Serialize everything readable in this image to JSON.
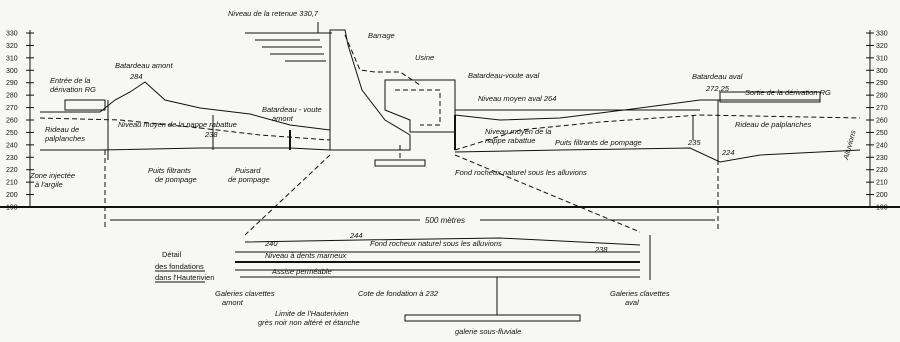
{
  "axes": {
    "elevations": [
      330,
      320,
      310,
      300,
      290,
      280,
      270,
      260,
      250,
      240,
      230,
      220,
      210,
      200,
      190
    ]
  },
  "profile": {
    "reservoir_level": "Niveau de la retenue 330,7",
    "dam": "Barrage",
    "plant": "Usine",
    "upstream_cofferdam": "Batardeau amont",
    "upstream_cofferdam_level": "284",
    "diversion_inlet": [
      "Entrée de la",
      "dérivation RG"
    ],
    "sheet_piling_left": [
      "Rideau de",
      "palplanches"
    ],
    "water_table_left": "Niveau moyen de la nappe rabattue",
    "left_rock_level": "238",
    "upstream_arch_cofferdam": [
      "Batardeau - voute",
      "amont"
    ],
    "grouted_zone": [
      "Zone injectée",
      "à l'argile"
    ],
    "wells_left": [
      "Puits filtrants",
      "de pompage"
    ],
    "sump": [
      "Puisard",
      "de pompage"
    ],
    "downstream_arch_cofferdam": "Batardeau-voute aval",
    "tailwater_level": "Niveau moyen aval 264",
    "water_table_right": [
      "Niveau moyen de la",
      "nappe rabattue"
    ],
    "wells_right": "Puits filtrants de pompage",
    "rock_bed": "Fond rocheux naturel sous les alluvions",
    "downstream_cofferdam": "Batardeau aval",
    "downstream_cofferdam_level": "272,25",
    "diversion_outlet": "Sortie de la dérivation RG",
    "sheet_piling_right": "Rideau de palplanches",
    "alluvium": "Alluvions",
    "right_level_a": "235",
    "right_level_b": "224",
    "distance": "500 mètres"
  },
  "detail": {
    "title": [
      "Détail",
      "des fondations",
      "dans l'Hauterivien"
    ],
    "level_left": "240",
    "level_mid": "244",
    "rock_bed": "Fond rocheux naturel sous les alluvions",
    "level_right": "238",
    "marl_layer": "Niveau à dents marneux",
    "permeable_layer": "Assise perméable",
    "foundation_level": "Cote de fondation à 232",
    "keys_upstream": [
      "Galeries clavettes",
      "amont"
    ],
    "keys_downstream": [
      "Galeries clavettes",
      "aval"
    ],
    "hauterivian_limit": [
      "Limite de l'Hauterivien",
      "grès noir non altéré et étanche"
    ],
    "gallery": "galerie sous-fluviale"
  }
}
